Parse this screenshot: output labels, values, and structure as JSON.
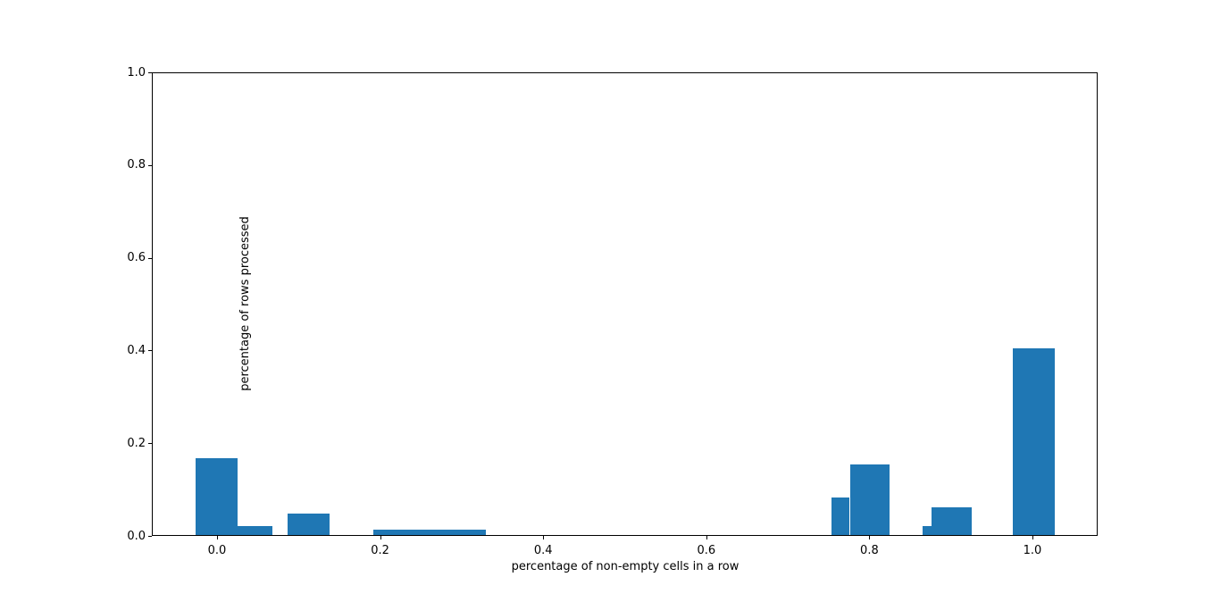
{
  "chart_data": {
    "type": "bar",
    "subtype": "histogram",
    "title": "",
    "xlabel": "percentage of non-empty cells in a row",
    "ylabel": "percentage of rows processed",
    "xlim": [
      -0.08,
      1.08
    ],
    "ylim": [
      0.0,
      1.0
    ],
    "grid": false,
    "legend_position": "none",
    "bar_color": "#1f77b4",
    "axis_color": "#000000",
    "background_color": "#ffffff",
    "x_ticks": [
      0.0,
      0.2,
      0.4,
      0.6,
      0.8,
      1.0
    ],
    "x_tick_labels": [
      "0.0",
      "0.2",
      "0.4",
      "0.6",
      "0.8",
      "1.0"
    ],
    "y_ticks": [
      0.0,
      0.2,
      0.4,
      0.6,
      0.8,
      1.0
    ],
    "y_tick_labels": [
      "0.0",
      "0.2",
      "0.4",
      "0.6",
      "0.8",
      "1.0"
    ],
    "bars": [
      {
        "x_start": -0.026,
        "x_end": 0.025,
        "height": 0.168
      },
      {
        "x_start": 0.025,
        "x_end": 0.068,
        "height": 0.022
      },
      {
        "x_start": 0.086,
        "x_end": 0.138,
        "height": 0.048
      },
      {
        "x_start": 0.192,
        "x_end": 0.33,
        "height": 0.013
      },
      {
        "x_start": 0.754,
        "x_end": 0.776,
        "height": 0.083
      },
      {
        "x_start": 0.776,
        "x_end": 0.825,
        "height": 0.154
      },
      {
        "x_start": 0.865,
        "x_end": 0.876,
        "height": 0.022
      },
      {
        "x_start": 0.876,
        "x_end": 0.926,
        "height": 0.061
      },
      {
        "x_start": 0.976,
        "x_end": 1.027,
        "height": 0.404
      }
    ]
  }
}
